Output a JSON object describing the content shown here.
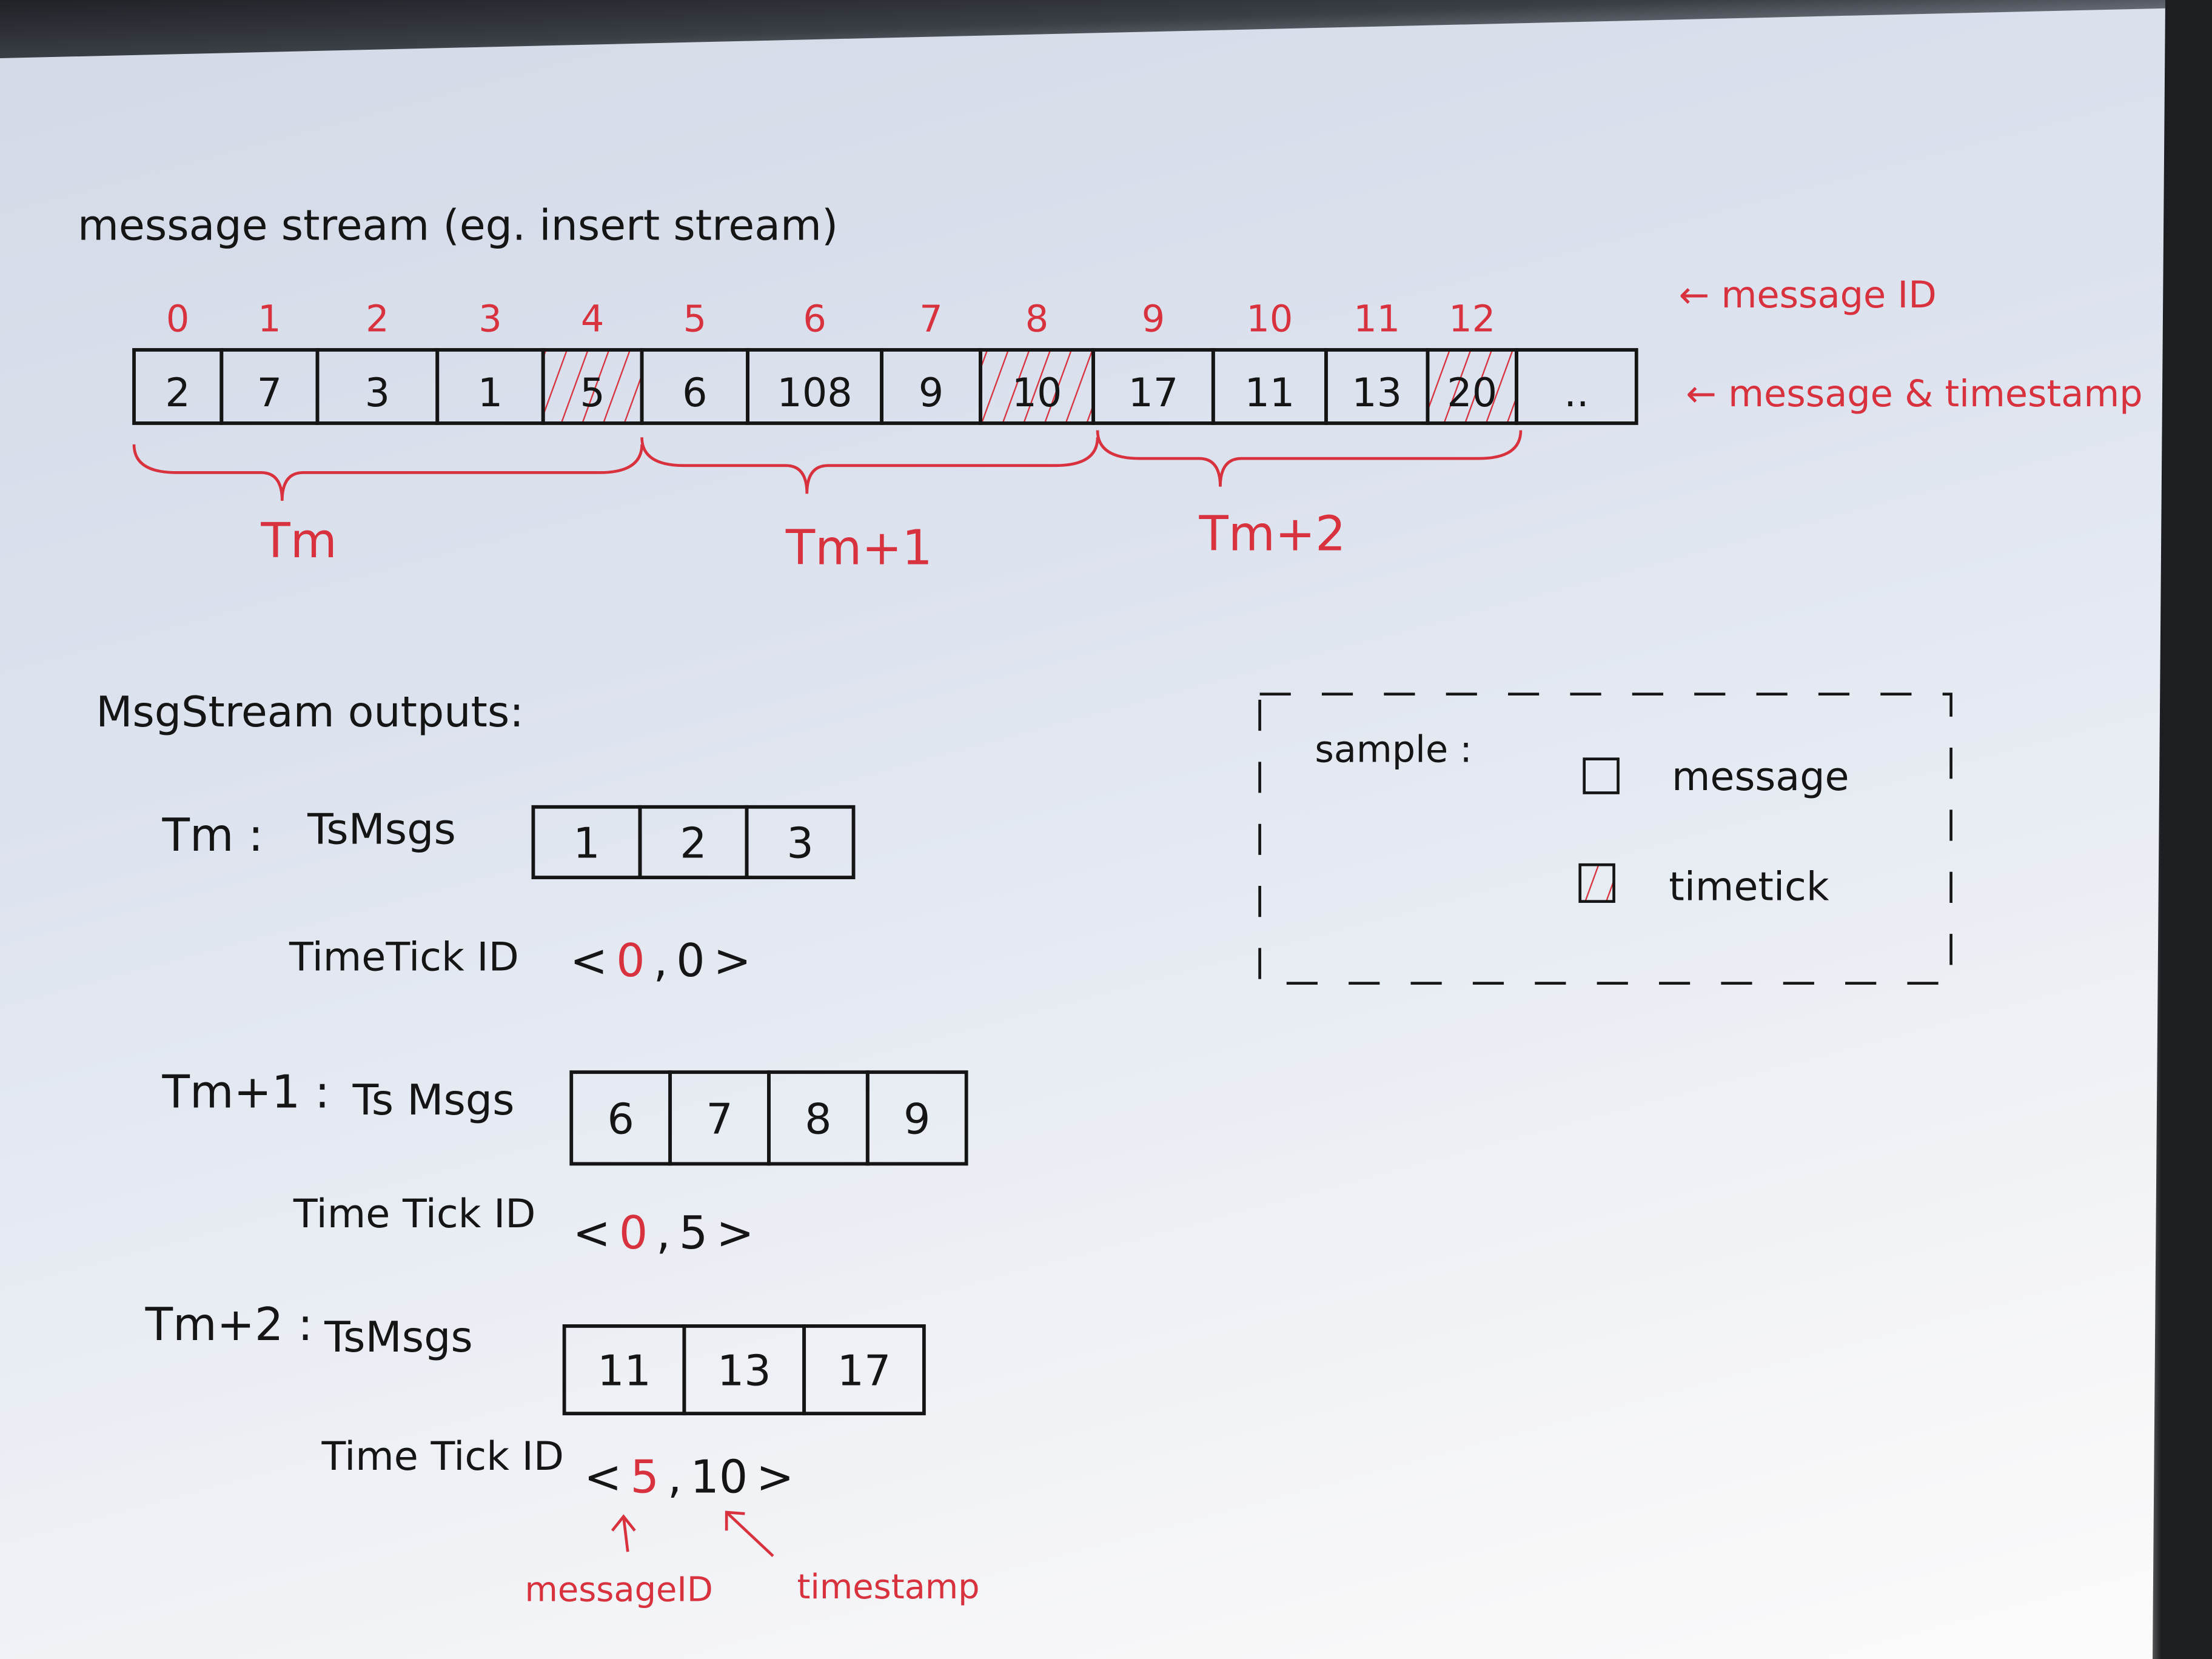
{
  "title": "message stream (eg. insert stream)",
  "colors": {
    "ink": "#151515",
    "red": "#d8323e",
    "paper": "#e3e8f0"
  },
  "stream": {
    "message_ids": [
      "0",
      "1",
      "2",
      "3",
      "4",
      "5",
      "6",
      "7",
      "8",
      "9",
      "10",
      "11",
      "12"
    ],
    "timestamps": [
      "2",
      "7",
      "3",
      "1",
      "5",
      "6",
      "108",
      "9",
      "10",
      "17",
      "11",
      "13",
      "20",
      ".."
    ],
    "timetick_indices": [
      4,
      8,
      12
    ],
    "id_label": "← message ID",
    "msg_label": "← message & timestamp"
  },
  "groups": [
    {
      "label": "Tm"
    },
    {
      "label": "Tm+1"
    },
    {
      "label": "Tm+2"
    }
  ],
  "outputs": {
    "heading": "MsgStream outputs:",
    "rows": [
      {
        "label": "Tm :",
        "msgs_label": "TsMsgs",
        "msgs": [
          "1",
          "2",
          "3"
        ],
        "tick_label": "TimeTick ID",
        "tick_open": "<",
        "tick_id": "0",
        "tick_sep": ",",
        "tick_ts": "0",
        "tick_close": ">"
      },
      {
        "label": "Tm+1 :",
        "msgs_label": "Ts Msgs",
        "msgs": [
          "6",
          "7",
          "8",
          "9"
        ],
        "tick_label": "Time Tick ID",
        "tick_open": "<",
        "tick_id": "0",
        "tick_sep": ",",
        "tick_ts": "5",
        "tick_close": ">"
      },
      {
        "label": "Tm+2 :",
        "msgs_label": "TsMsgs",
        "msgs": [
          "11",
          "13",
          "17"
        ],
        "tick_label": "Time Tick ID",
        "tick_open": "<",
        "tick_id": "5",
        "tick_sep": ",",
        "tick_ts": "10",
        "tick_close": ">"
      }
    ],
    "annot_id": "messageID",
    "annot_ts": "timestamp"
  },
  "legend": {
    "title": "sample :",
    "message": "message",
    "timetick": "timetick",
    "message_icon": "empty-square",
    "timetick_icon": "hatched-square"
  }
}
